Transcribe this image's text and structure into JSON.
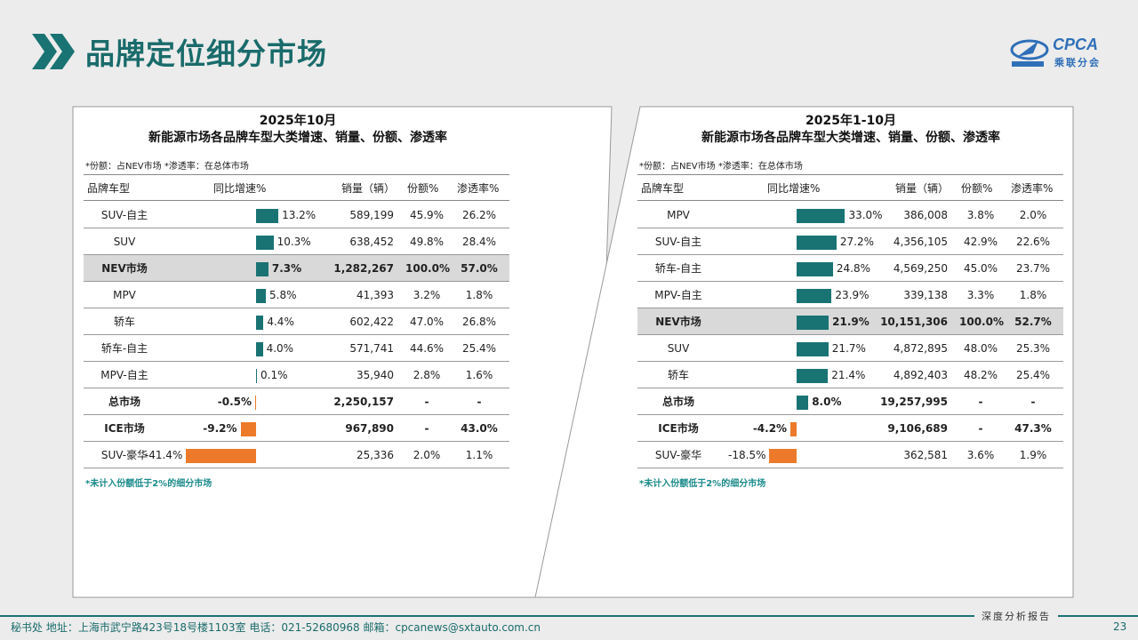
{
  "header": {
    "title": "品牌定位细分市场",
    "logo_en": "CPCA",
    "logo_cn": "乘联分会"
  },
  "colors": {
    "accent": "#1a7373",
    "positive_bar": "#1a7373",
    "negative_bar": "#ec7a2a",
    "highlight_row": "#d9d9d9"
  },
  "columns": {
    "segment": "品牌车型",
    "growth": "同比增速%",
    "sales": "销量（辆）",
    "share": "份额%",
    "penetration": "渗透率%"
  },
  "chart_data": [
    {
      "type": "bar",
      "title": "2025年10月",
      "subtitle": "新能源市场各品牌车型大类增速、销量、份额、渗透率",
      "note": "*份额：占NEV市场   *渗透率：在总体市场",
      "footnote": "*未计入份额低于2%的细分市场",
      "rows": [
        {
          "segment": "SUV-自主",
          "growth": 13.2,
          "growth_label": "13.2%",
          "sales": "589,199",
          "share": "45.9%",
          "penetration": "26.2%",
          "bold": false,
          "highlight": false
        },
        {
          "segment": "SUV",
          "growth": 10.3,
          "growth_label": "10.3%",
          "sales": "638,452",
          "share": "49.8%",
          "penetration": "28.4%",
          "bold": false,
          "highlight": false
        },
        {
          "segment": "NEV市场",
          "growth": 7.3,
          "growth_label": "7.3%",
          "sales": "1,282,267",
          "share": "100.0%",
          "penetration": "57.0%",
          "bold": true,
          "highlight": true
        },
        {
          "segment": "MPV",
          "growth": 5.8,
          "growth_label": "5.8%",
          "sales": "41,393",
          "share": "3.2%",
          "penetration": "1.8%",
          "bold": false,
          "highlight": false
        },
        {
          "segment": "轿车",
          "growth": 4.4,
          "growth_label": "4.4%",
          "sales": "602,422",
          "share": "47.0%",
          "penetration": "26.8%",
          "bold": false,
          "highlight": false
        },
        {
          "segment": "轿车-自主",
          "growth": 4.0,
          "growth_label": "4.0%",
          "sales": "571,741",
          "share": "44.6%",
          "penetration": "25.4%",
          "bold": false,
          "highlight": false
        },
        {
          "segment": "MPV-自主",
          "growth": 0.1,
          "growth_label": "0.1%",
          "sales": "35,940",
          "share": "2.8%",
          "penetration": "1.6%",
          "bold": false,
          "highlight": false
        },
        {
          "segment": "总市场",
          "growth": -0.5,
          "growth_label": "-0.5%",
          "sales": "2,250,157",
          "share": "-",
          "penetration": "-",
          "bold": true,
          "highlight": false
        },
        {
          "segment": "ICE市场",
          "growth": -9.2,
          "growth_label": "-9.2%",
          "sales": "967,890",
          "share": "-",
          "penetration": "43.0%",
          "bold": true,
          "highlight": false
        },
        {
          "segment": "SUV-豪华",
          "growth": -41.4,
          "growth_label": "-41.4%",
          "sales": "25,336",
          "share": "2.0%",
          "penetration": "1.1%",
          "bold": false,
          "highlight": false
        }
      ]
    },
    {
      "type": "bar",
      "title": "2025年1-10月",
      "subtitle": "新能源市场各品牌车型大类增速、销量、份额、渗透率",
      "note": "*份额：占NEV市场   *渗透率：在总体市场",
      "footnote": "*未计入份额低于2%的细分市场",
      "rows": [
        {
          "segment": "MPV",
          "growth": 33.0,
          "growth_label": "33.0%",
          "sales": "386,008",
          "share": "3.8%",
          "penetration": "2.0%",
          "bold": false,
          "highlight": false
        },
        {
          "segment": "SUV-自主",
          "growth": 27.2,
          "growth_label": "27.2%",
          "sales": "4,356,105",
          "share": "42.9%",
          "penetration": "22.6%",
          "bold": false,
          "highlight": false
        },
        {
          "segment": "轿车-自主",
          "growth": 24.8,
          "growth_label": "24.8%",
          "sales": "4,569,250",
          "share": "45.0%",
          "penetration": "23.7%",
          "bold": false,
          "highlight": false
        },
        {
          "segment": "MPV-自主",
          "growth": 23.9,
          "growth_label": "23.9%",
          "sales": "339,138",
          "share": "3.3%",
          "penetration": "1.8%",
          "bold": false,
          "highlight": false
        },
        {
          "segment": "NEV市场",
          "growth": 21.9,
          "growth_label": "21.9%",
          "sales": "10,151,306",
          "share": "100.0%",
          "penetration": "52.7%",
          "bold": true,
          "highlight": true
        },
        {
          "segment": "SUV",
          "growth": 21.7,
          "growth_label": "21.7%",
          "sales": "4,872,895",
          "share": "48.0%",
          "penetration": "25.3%",
          "bold": false,
          "highlight": false
        },
        {
          "segment": "轿车",
          "growth": 21.4,
          "growth_label": "21.4%",
          "sales": "4,892,403",
          "share": "48.2%",
          "penetration": "25.4%",
          "bold": false,
          "highlight": false
        },
        {
          "segment": "总市场",
          "growth": 8.0,
          "growth_label": "8.0%",
          "sales": "19,257,995",
          "share": "-",
          "penetration": "-",
          "bold": true,
          "highlight": false
        },
        {
          "segment": "ICE市场",
          "growth": -4.2,
          "growth_label": "-4.2%",
          "sales": "9,106,689",
          "share": "-",
          "penetration": "47.3%",
          "bold": true,
          "highlight": false
        },
        {
          "segment": "SUV-豪华",
          "growth": -18.5,
          "growth_label": "-18.5%",
          "sales": "362,581",
          "share": "3.6%",
          "penetration": "1.9%",
          "bold": false,
          "highlight": false
        }
      ]
    }
  ],
  "footer": {
    "contact": "秘书处   地址：上海市武宁路423号18号楼1103室   电话：021-52680968   邮箱：cpcanews@sxtauto.com.cn",
    "report": "深度分析报告",
    "page": "23"
  }
}
